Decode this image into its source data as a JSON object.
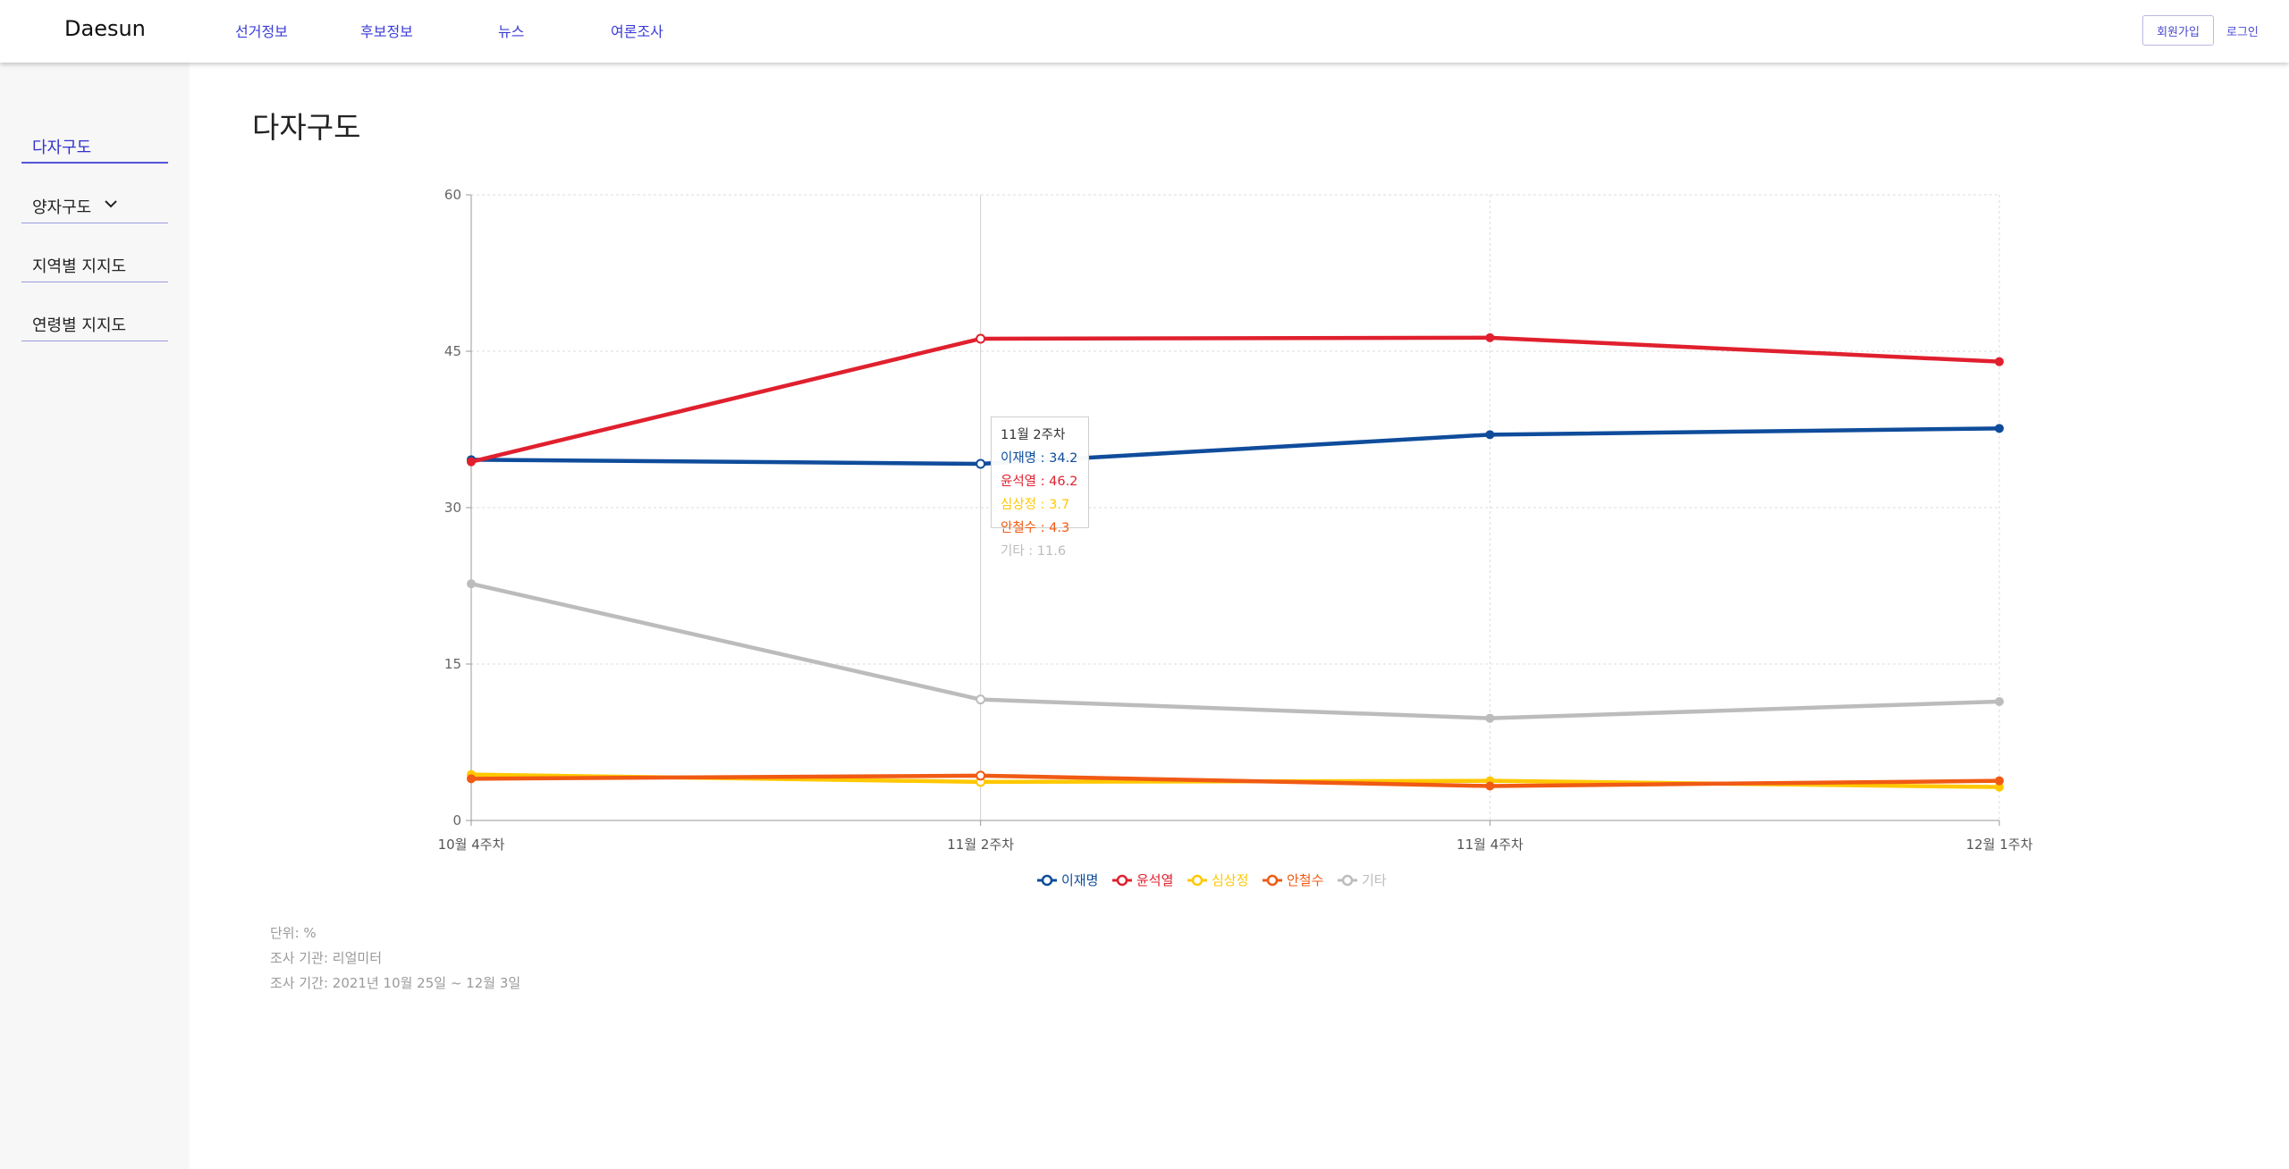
{
  "header": {
    "brand": "Daesun",
    "nav": [
      "선거정보",
      "후보정보",
      "뉴스",
      "여론조사"
    ],
    "signup_label": "회원가입",
    "login_label": "로그인"
  },
  "sidebar": {
    "items": [
      {
        "label": "다자구도",
        "active": true
      },
      {
        "label": "양자구도",
        "has_dropdown": true
      },
      {
        "label": "지역별 지지도"
      },
      {
        "label": "연령별 지지도"
      }
    ]
  },
  "main": {
    "title": "다자구도",
    "footnotes": [
      "단위: %",
      "조사 기관: 리얼미터",
      "조사 기간: 2021년 10월 25일 ~ 12월 3일"
    ]
  },
  "chart_data": {
    "type": "line",
    "categories": [
      "10월 4주차",
      "11월 2주차",
      "11월 4주차",
      "12월 1주차"
    ],
    "ylim": [
      0,
      60
    ],
    "yticks": [
      0,
      15,
      30,
      45,
      60
    ],
    "grid": true,
    "legend_position": "bottom",
    "series": [
      {
        "name": "이재명",
        "color": "#0f4c9b",
        "values": [
          34.6,
          34.2,
          37.0,
          37.6
        ]
      },
      {
        "name": "윤석열",
        "color": "#e0202e",
        "values": [
          34.4,
          46.2,
          46.3,
          44.0
        ]
      },
      {
        "name": "심상정",
        "color": "#ffc800",
        "values": [
          4.4,
          3.7,
          3.8,
          3.2
        ]
      },
      {
        "name": "안철수",
        "color": "#f05a14",
        "values": [
          4.0,
          4.3,
          3.3,
          3.8
        ]
      },
      {
        "name": "기타",
        "color": "#bcbcbc",
        "values": [
          22.7,
          11.6,
          9.8,
          11.4
        ]
      }
    ],
    "tooltip": {
      "title": "11월 2주차",
      "rows": [
        "이재명 : 34.2",
        "윤석열 : 46.2",
        "심상정 : 3.7",
        "안철수 : 4.3",
        "기타 : 11.6"
      ]
    }
  }
}
